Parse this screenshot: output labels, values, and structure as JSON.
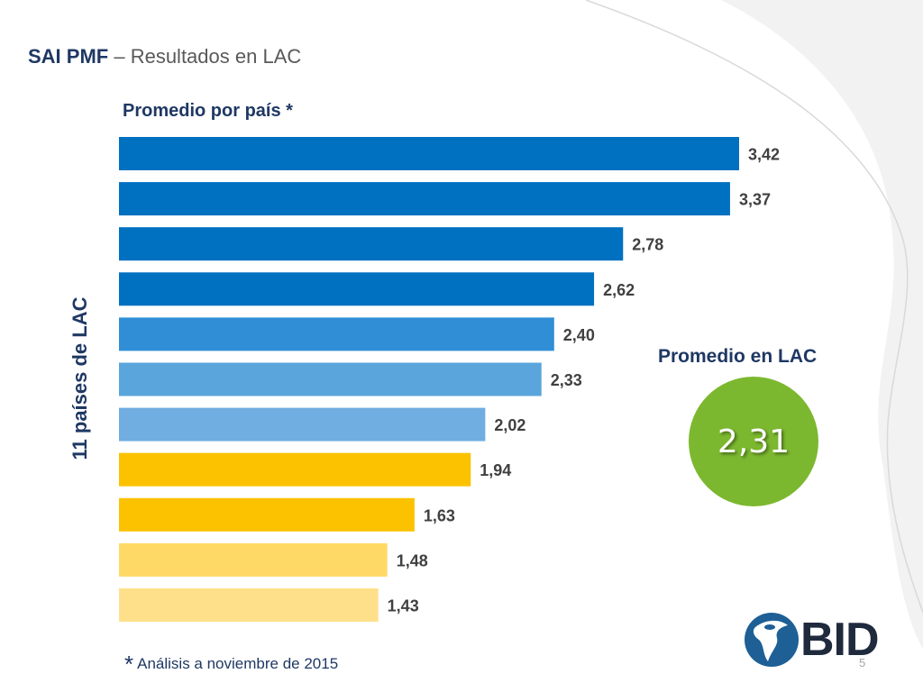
{
  "slide": {
    "title_bold": "SAI PMF",
    "title_rest": " – Resultados en LAC",
    "page_number": "5"
  },
  "chart_data": {
    "type": "bar",
    "orientation": "horizontal",
    "title": "Promedio por país *",
    "ylabel": "11 países de LAC",
    "xlim": [
      0,
      3.6
    ],
    "values": [
      3.42,
      3.37,
      2.78,
      2.62,
      2.4,
      2.33,
      2.02,
      1.94,
      1.63,
      1.48,
      1.43
    ],
    "value_labels": [
      "3,42",
      "3,37",
      "2,78",
      "2,62",
      "2,40",
      "2,33",
      "2,02",
      "1,94",
      "1,63",
      "1,48",
      "1,43"
    ],
    "colors": [
      "#0070c0",
      "#0070c0",
      "#0070c0",
      "#0070c0",
      "#2f8ed6",
      "#5aa5dc",
      "#70ade0",
      "#fcc200",
      "#fcc200",
      "#ffd966",
      "#ffe08a"
    ]
  },
  "summary": {
    "label": "Promedio en LAC",
    "value": "2,31",
    "color": "#7cb82f"
  },
  "footnote": {
    "star": "*",
    "text": "Análisis a noviembre de 2015"
  },
  "logo": {
    "text": "BID"
  }
}
